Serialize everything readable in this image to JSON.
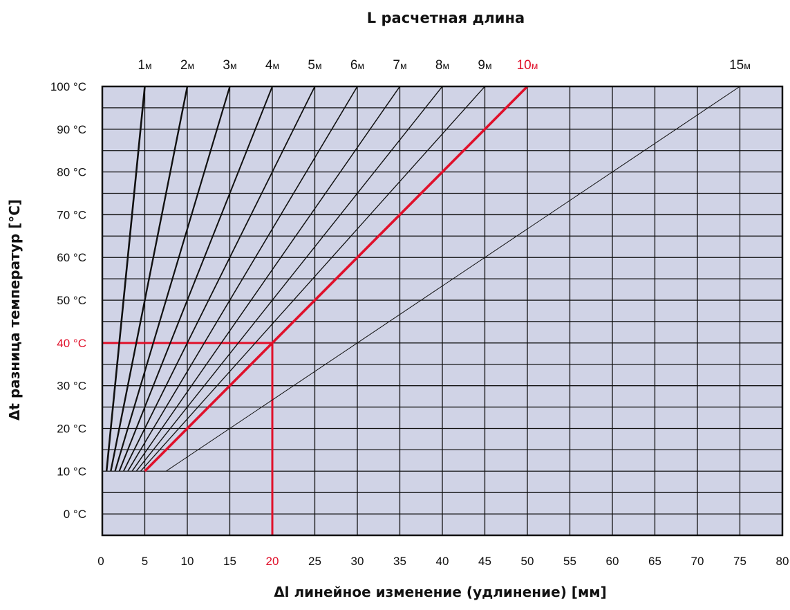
{
  "chart_data": {
    "type": "line",
    "title": "L расчетная длина",
    "xlabel": "Δl линейное изменение (удлинение) [мм]",
    "ylabel": "Δt  разница температур [°C]",
    "xlim": [
      0,
      80
    ],
    "ylim": [
      -5,
      100
    ],
    "grid": true,
    "background_color": "#d0d3e6",
    "line_color": "#111111",
    "highlight_color": "#e0102a",
    "x_ticks": [
      "0",
      "5",
      "10",
      "15",
      "20",
      "25",
      "30",
      "35",
      "40",
      "45",
      "50",
      "55",
      "60",
      "65",
      "70",
      "75",
      "80"
    ],
    "y_ticks": [
      {
        "value": 0,
        "label": "0 °C"
      },
      {
        "value": 10,
        "label": "10 °C"
      },
      {
        "value": 20,
        "label": "20 °C"
      },
      {
        "value": 30,
        "label": "30 °C"
      },
      {
        "value": 40,
        "label": "40 °C"
      },
      {
        "value": 50,
        "label": "50 °C"
      },
      {
        "value": 60,
        "label": "60 °C"
      },
      {
        "value": 70,
        "label": "70 °C"
      },
      {
        "value": 80,
        "label": "80 °C"
      },
      {
        "value": 90,
        "label": "90 °C"
      },
      {
        "value": 100,
        "label": "100 °C"
      }
    ],
    "length_unit": "м",
    "series": [
      {
        "name": "1",
        "x": [
          0.5,
          5
        ],
        "y": [
          10,
          100
        ]
      },
      {
        "name": "2",
        "x": [
          1,
          10
        ],
        "y": [
          10,
          100
        ]
      },
      {
        "name": "3",
        "x": [
          1.5,
          15
        ],
        "y": [
          10,
          100
        ]
      },
      {
        "name": "4",
        "x": [
          2,
          20
        ],
        "y": [
          10,
          100
        ]
      },
      {
        "name": "5",
        "x": [
          2.5,
          25
        ],
        "y": [
          10,
          100
        ]
      },
      {
        "name": "6",
        "x": [
          3,
          30
        ],
        "y": [
          10,
          100
        ]
      },
      {
        "name": "7",
        "x": [
          3.5,
          35
        ],
        "y": [
          10,
          100
        ]
      },
      {
        "name": "8",
        "x": [
          4,
          40
        ],
        "y": [
          10,
          100
        ]
      },
      {
        "name": "9",
        "x": [
          4.5,
          45
        ],
        "y": [
          10,
          100
        ]
      },
      {
        "name": "10",
        "x": [
          5,
          50
        ],
        "y": [
          10,
          100
        ],
        "highlight": true
      },
      {
        "name": "15",
        "x": [
          7.5,
          75
        ],
        "y": [
          10,
          100
        ]
      }
    ],
    "example": {
      "x": 20,
      "y": 40,
      "x_label": "20",
      "y_label": "40 °C"
    }
  }
}
